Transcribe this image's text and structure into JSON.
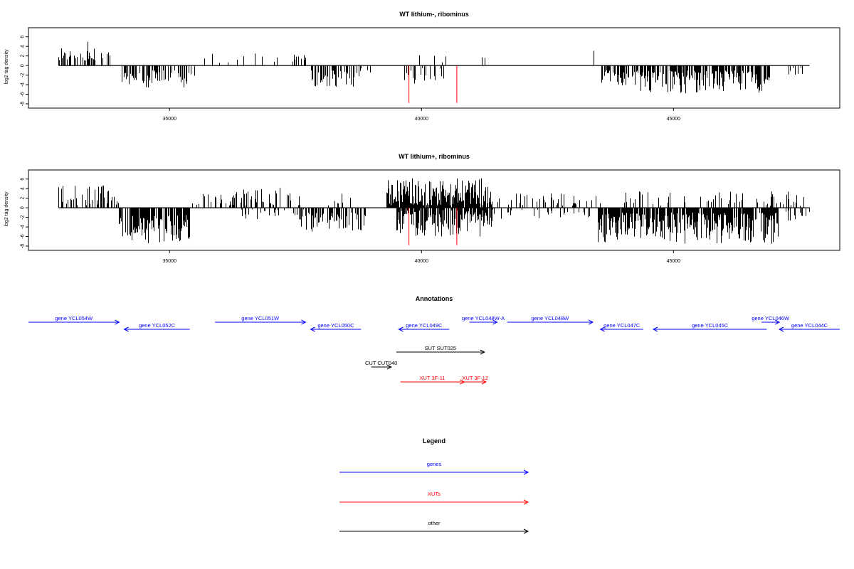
{
  "chart_data": [
    {
      "type": "bar",
      "title": "WT lithium-, ribominus",
      "xlabel": "",
      "ylabel": "log2 tag density",
      "xlim": [
        32200,
        48300
      ],
      "ylim": [
        -8,
        7
      ],
      "xticks": [
        35000,
        40000,
        45000
      ],
      "xtick_labels": [
        "35000",
        "40000",
        "45000"
      ],
      "yticks": [
        -8,
        -6,
        -4,
        -2,
        0,
        2,
        4,
        6
      ],
      "ytick_labels": [
        "-8",
        "-6",
        "-4",
        "-2",
        "0",
        "2",
        "4",
        "6"
      ],
      "baseline_range": [
        32800,
        47700
      ],
      "markers": {
        "x": [
          39750,
          40700
        ],
        "y": -7.8,
        "color": "#ff0000"
      },
      "seed": 11,
      "segments": [
        {
          "x": [
            32800,
            33500
          ],
          "sign": 1,
          "min": 1.0,
          "max": 5.0,
          "density": 0.55
        },
        {
          "x": [
            33500,
            33900
          ],
          "sign": 1,
          "min": 0.5,
          "max": 4.2,
          "density": 0.3
        },
        {
          "x": [
            34050,
            34500
          ],
          "sign": -1,
          "min": 1.5,
          "max": 4.2,
          "density": 0.55
        },
        {
          "x": [
            34500,
            35300
          ],
          "sign": -1,
          "min": 1.0,
          "max": 4.6,
          "density": 0.55
        },
        {
          "x": [
            35300,
            35500
          ],
          "sign": -1,
          "min": 1.0,
          "max": 4.0,
          "density": 0.3
        },
        {
          "x": [
            35550,
            36500
          ],
          "sign": 1,
          "min": 0.4,
          "max": 2.8,
          "density": 0.08
        },
        {
          "x": [
            36500,
            37500
          ],
          "sign": 1,
          "min": 0.5,
          "max": 3.2,
          "density": 0.15
        },
        {
          "x": [
            37500,
            37700
          ],
          "sign": 1,
          "min": 1.0,
          "max": 3.8,
          "density": 0.3
        },
        {
          "x": [
            37800,
            38800
          ],
          "sign": -1,
          "min": 1.0,
          "max": 4.5,
          "density": 0.6
        },
        {
          "x": [
            38800,
            39300
          ],
          "sign": -1,
          "min": 0.5,
          "max": 2.8,
          "density": 0.12
        },
        {
          "x": [
            39650,
            40450
          ],
          "sign": -1,
          "min": 0.5,
          "max": 3.8,
          "density": 0.3
        },
        {
          "x": [
            39900,
            40700
          ],
          "sign": 1,
          "min": 0.5,
          "max": 2.8,
          "density": 0.12
        },
        {
          "x": [
            41200,
            41300
          ],
          "sign": 1,
          "min": 1.5,
          "max": 2.8,
          "density": 0.4
        },
        {
          "x": [
            42800,
            43550
          ],
          "sign": 1,
          "min": 1.0,
          "max": 3.5,
          "density": 0.05
        },
        {
          "x": [
            43550,
            44300
          ],
          "sign": -1,
          "min": 1.0,
          "max": 4.2,
          "density": 0.6
        },
        {
          "x": [
            44300,
            46900
          ],
          "sign": -1,
          "min": 1.0,
          "max": 5.8,
          "density": 0.7
        },
        {
          "x": [
            46900,
            47700
          ],
          "sign": -1,
          "min": 0.5,
          "max": 2.5,
          "density": 0.12
        }
      ]
    },
    {
      "type": "bar",
      "title": "WT lithium+, ribominus",
      "xlabel": "",
      "ylabel": "log2 tag density",
      "xlim": [
        32200,
        48300
      ],
      "ylim": [
        -8,
        7
      ],
      "xticks": [
        35000,
        40000,
        45000
      ],
      "xtick_labels": [
        "35000",
        "40000",
        "45000"
      ],
      "yticks": [
        -8,
        -6,
        -4,
        -2,
        0,
        2,
        4,
        6
      ],
      "ytick_labels": [
        "-8",
        "-6",
        "-4",
        "-2",
        "0",
        "2",
        "4",
        "6"
      ],
      "baseline_range": [
        32800,
        47700
      ],
      "markers": {
        "x": [
          39750,
          40700
        ],
        "y": -7.8,
        "color": "#ff0000"
      },
      "seed": 29,
      "segments": [
        {
          "x": [
            32800,
            34000
          ],
          "sign": 1,
          "min": 0.5,
          "max": 4.8,
          "density": 0.45
        },
        {
          "x": [
            34000,
            35400
          ],
          "sign": -1,
          "min": 1.5,
          "max": 7.5,
          "density": 0.8
        },
        {
          "x": [
            35450,
            36500
          ],
          "sign": 1,
          "min": 0.5,
          "max": 3.0,
          "density": 0.2
        },
        {
          "x": [
            36000,
            37600
          ],
          "sign": 1,
          "min": 0.5,
          "max": 4.2,
          "density": 0.35
        },
        {
          "x": [
            36400,
            37800
          ],
          "sign": -1,
          "min": 0.3,
          "max": 2.5,
          "density": 0.2
        },
        {
          "x": [
            37600,
            38900
          ],
          "sign": -1,
          "min": 1.0,
          "max": 5.0,
          "density": 0.55
        },
        {
          "x": [
            37700,
            38600
          ],
          "sign": 1,
          "min": 0.5,
          "max": 3.0,
          "density": 0.12
        },
        {
          "x": [
            39300,
            41400
          ],
          "sign": 1,
          "min": 0.5,
          "max": 6.2,
          "density": 0.9
        },
        {
          "x": [
            39500,
            41400
          ],
          "sign": -1,
          "min": 0.5,
          "max": 6.0,
          "density": 0.85
        },
        {
          "x": [
            41400,
            43600
          ],
          "sign": 1,
          "min": 0.4,
          "max": 3.2,
          "density": 0.25
        },
        {
          "x": [
            41400,
            43500
          ],
          "sign": -1,
          "min": 0.3,
          "max": 2.5,
          "density": 0.2
        },
        {
          "x": [
            43500,
            47100
          ],
          "sign": -1,
          "min": 1.0,
          "max": 7.5,
          "density": 0.85
        },
        {
          "x": [
            44000,
            47700
          ],
          "sign": 1,
          "min": 0.4,
          "max": 3.5,
          "density": 0.2
        },
        {
          "x": [
            47100,
            47700
          ],
          "sign": -1,
          "min": 0.5,
          "max": 2.8,
          "density": 0.25
        }
      ]
    }
  ],
  "annotations": {
    "title": "Annotations",
    "xlim": [
      32200,
      48300
    ],
    "features": [
      {
        "label": "gene YCL054W",
        "start": 32200,
        "end": 34000,
        "strand": "+",
        "type": "gene",
        "row": 0
      },
      {
        "label": "gene YCL052C",
        "start": 34100,
        "end": 35400,
        "strand": "-",
        "type": "gene",
        "row": 1
      },
      {
        "label": "gene YCL051W",
        "start": 35900,
        "end": 37700,
        "strand": "+",
        "type": "gene",
        "row": 0
      },
      {
        "label": "gene YCL050C",
        "start": 37800,
        "end": 38800,
        "strand": "-",
        "type": "gene",
        "row": 1
      },
      {
        "label": "gene YCL049C",
        "start": 39550,
        "end": 40550,
        "strand": "-",
        "type": "gene",
        "row": 1
      },
      {
        "label": "gene YCL048W-A",
        "start": 40950,
        "end": 41500,
        "strand": "+",
        "type": "gene",
        "row": 0
      },
      {
        "label": "gene YCL048W",
        "start": 41700,
        "end": 43400,
        "strand": "+",
        "type": "gene",
        "row": 0
      },
      {
        "label": "gene YCL047C",
        "start": 43550,
        "end": 44400,
        "strand": "-",
        "type": "gene",
        "row": 1
      },
      {
        "label": "gene YCL045C",
        "start": 44600,
        "end": 46850,
        "strand": "-",
        "type": "gene",
        "row": 1
      },
      {
        "label": "gene YCL046W",
        "start": 46750,
        "end": 47100,
        "strand": "+",
        "type": "gene",
        "row": 0
      },
      {
        "label": "gene YCL044C",
        "start": 47100,
        "end": 48300,
        "strand": "-",
        "type": "gene",
        "row": 1
      },
      {
        "label": "SUT SUT025",
        "start": 39500,
        "end": 41250,
        "strand": "+",
        "type": "other",
        "row": 2
      },
      {
        "label": "CUT CUT040",
        "start": 39000,
        "end": 39400,
        "strand": "+",
        "type": "other",
        "row": 3
      },
      {
        "label": "XUT 3F-11",
        "start": 39580,
        "end": 40850,
        "strand": "+",
        "type": "xut",
        "row": 4
      },
      {
        "label": "XUT 3F-12",
        "start": 40850,
        "end": 41280,
        "strand": "+",
        "type": "xut",
        "row": 4
      }
    ]
  },
  "legend": {
    "title": "Legend",
    "items": [
      {
        "label": "genes",
        "type": "gene"
      },
      {
        "label": "XUTs",
        "type": "xut"
      },
      {
        "label": "other",
        "type": "other"
      }
    ]
  },
  "colors": {
    "gene": "#0000ff",
    "xut": "#ff0000",
    "other": "#000000",
    "bar": "#000000",
    "axis": "#000000"
  }
}
